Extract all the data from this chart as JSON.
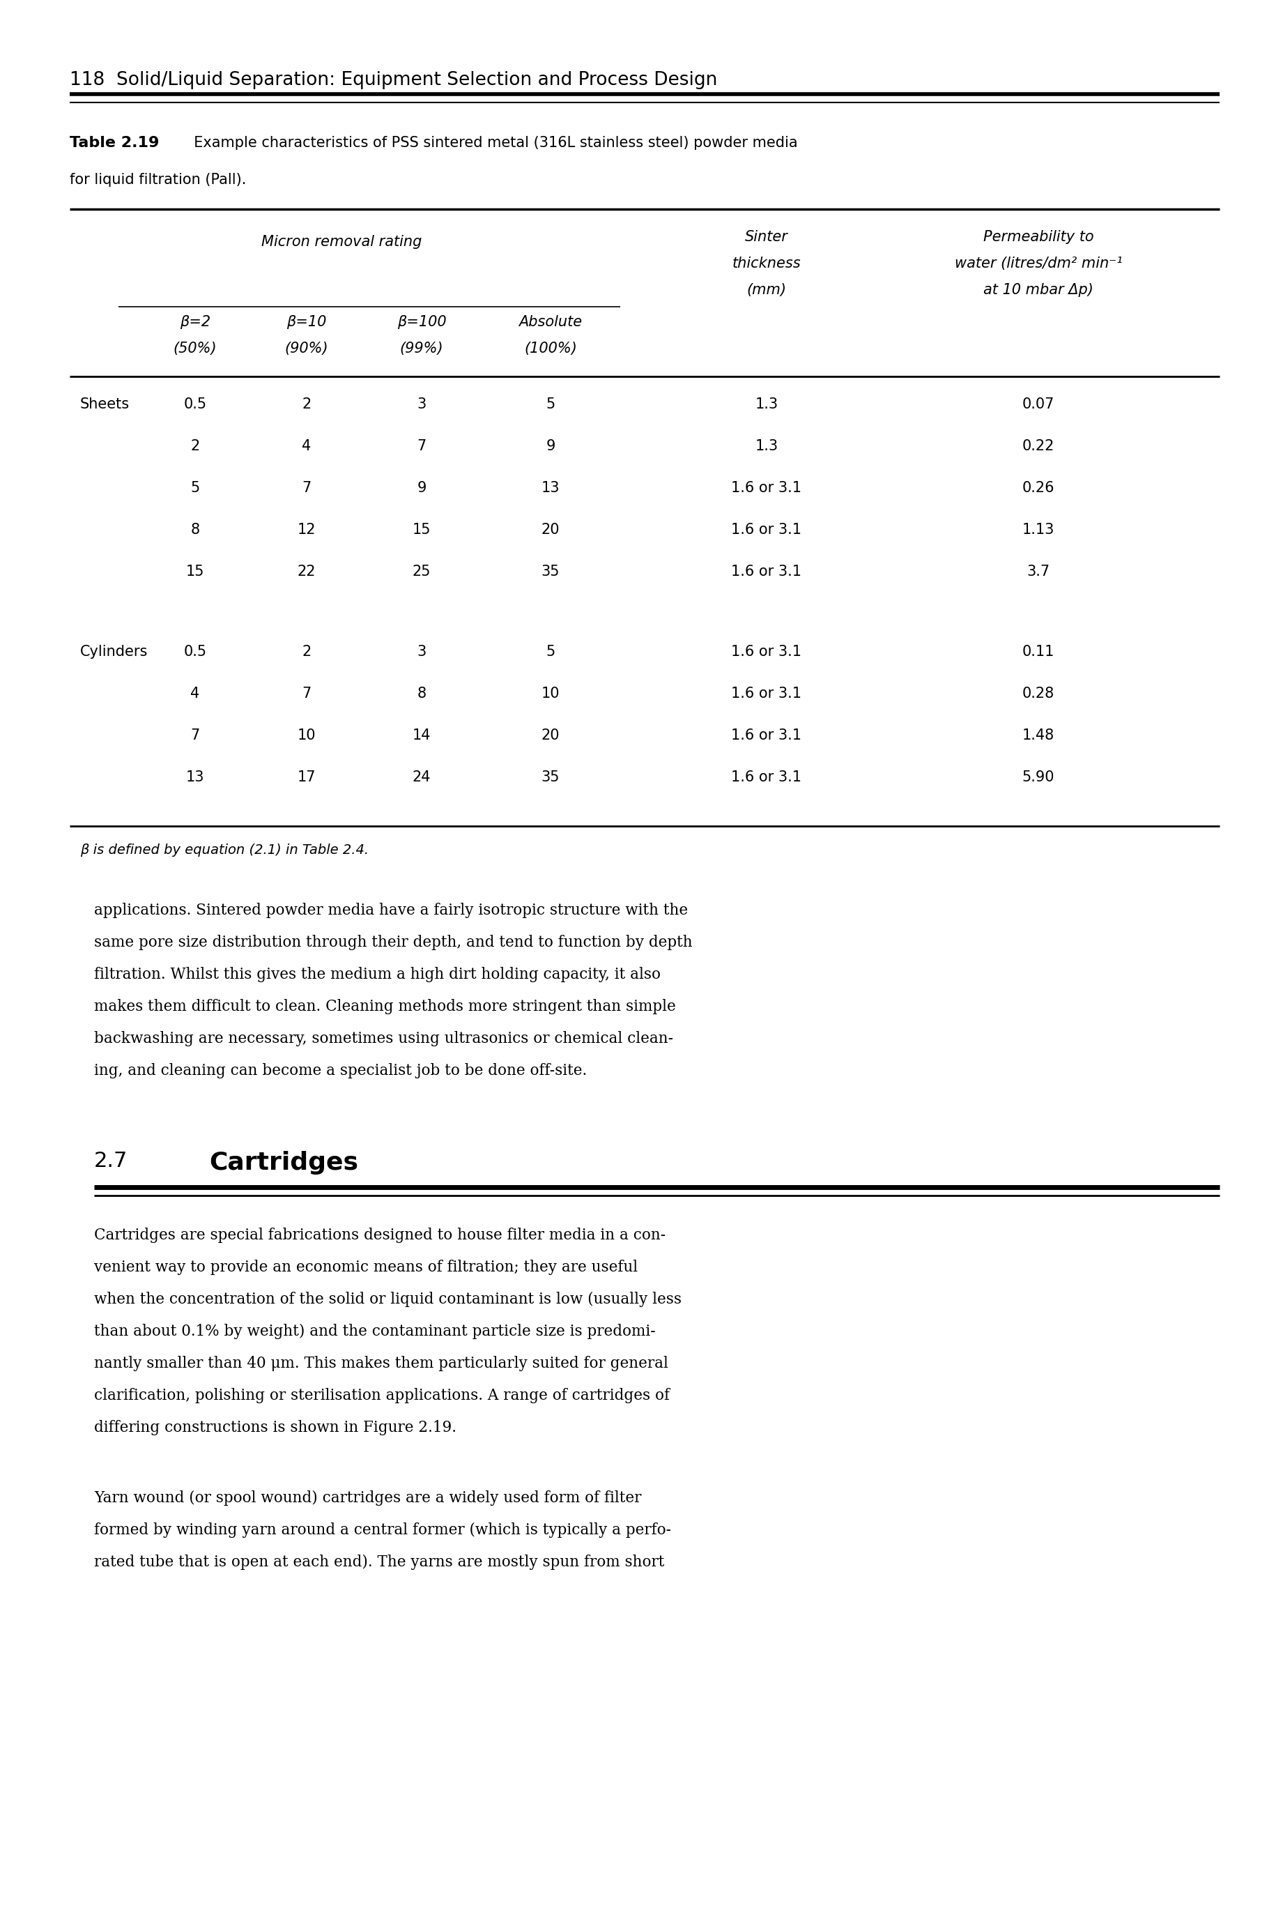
{
  "page_header": "118  Solid/Liquid Separation: Equipment Selection and Process Design",
  "table_caption_bold": "Table 2.19",
  "table_caption_rest": "  Example characteristics of PSS sintered metal (316L stainless steel) powder media",
  "table_caption_line2": "for liquid filtration (Pall).",
  "col_header_micron": "Micron removal rating",
  "col_header_sinter_lines": [
    "Sinter",
    "thickness",
    "(mm)"
  ],
  "col_header_perm_lines": [
    "Permeability to",
    "water (litres/dm² min⁻¹",
    "at 10 mbar Δp)"
  ],
  "sub_headers_line1": [
    "β=2",
    "β=10",
    "β=100",
    "Absolute"
  ],
  "sub_headers_line2": [
    "(50%)",
    "(90%)",
    "(99%)",
    "(100%)"
  ],
  "sheets_rows": [
    [
      "0.5",
      "2",
      "3",
      "5",
      "1.3",
      "0.07"
    ],
    [
      "2",
      "4",
      "7",
      "9",
      "1.3",
      "0.22"
    ],
    [
      "5",
      "7",
      "9",
      "13",
      "1.6 or 3.1",
      "0.26"
    ],
    [
      "8",
      "12",
      "15",
      "20",
      "1.6 or 3.1",
      "1.13"
    ],
    [
      "15",
      "22",
      "25",
      "35",
      "1.6 or 3.1",
      "3.7"
    ]
  ],
  "cylinders_rows": [
    [
      "0.5",
      "2",
      "3",
      "5",
      "1.6 or 3.1",
      "0.11"
    ],
    [
      "4",
      "7",
      "8",
      "10",
      "1.6 or 3.1",
      "0.28"
    ],
    [
      "7",
      "10",
      "14",
      "20",
      "1.6 or 3.1",
      "1.48"
    ],
    [
      "13",
      "17",
      "24",
      "35",
      "1.6 or 3.1",
      "5.90"
    ]
  ],
  "footnote": "β is defined by equation (2.1) in Table 2.4.",
  "body_lines1": [
    "applications. Sintered powder media have a fairly isotropic structure with the",
    "same pore size distribution through their depth, and tend to function by depth",
    "filtration. Whilst this gives the medium a high dirt holding capacity, it also",
    "makes them difficult to clean. Cleaning methods more stringent than simple",
    "backwashing are necessary, sometimes using ultrasonics or chemical clean-",
    "ing, and cleaning can become a specialist job to be done off-site."
  ],
  "section_num": "2.7",
  "section_title": "Cartridges",
  "body_lines2": [
    "Cartridges are special fabrications designed to house filter media in a con-",
    "venient way to provide an economic means of filtration; they are useful",
    "when the concentration of the solid or liquid contaminant is low (usually less",
    "than about 0.1% by weight) and the contaminant particle size is predomi-",
    "nantly smaller than 40 μm. This makes them particularly suited for general",
    "clarification, polishing or sterilisation applications. A range of cartridges of",
    "differing constructions is shown in Figure 2.19."
  ],
  "body_lines3": [
    "Yarn wound (or spool wound) cartridges are a widely used form of filter",
    "formed by winding yarn around a central former (which is typically a perfo-",
    "rated tube that is open at each end). The yarns are mostly spun from short"
  ],
  "bg_color": "#ffffff",
  "text_color": "#000000"
}
